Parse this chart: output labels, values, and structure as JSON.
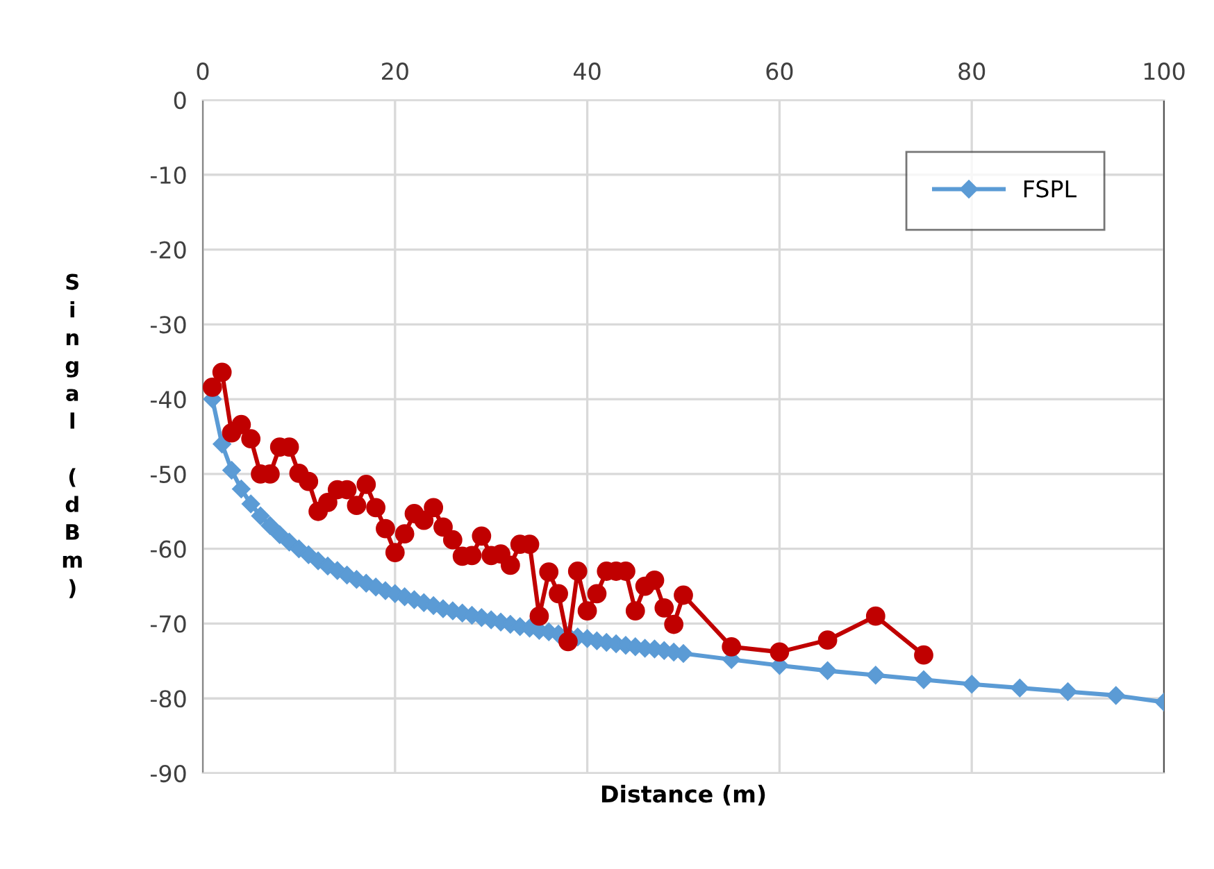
{
  "chart_data": {
    "type": "line",
    "xlabel": "Distance (m)",
    "ylabel": "Singal (dBm)",
    "xlim": [
      0,
      100
    ],
    "xticks": [
      0,
      20,
      40,
      60,
      80,
      100
    ],
    "ylim": [
      -90,
      0
    ],
    "yticks": [
      0,
      -10,
      -20,
      -30,
      -40,
      -50,
      -60,
      -70,
      -80,
      -90
    ],
    "grid": true,
    "legend": "top right",
    "series": [
      {
        "color": "#c00000",
        "marker": "circle",
        "x": [
          1,
          2,
          3,
          4,
          5,
          6,
          7,
          8,
          9,
          10,
          11,
          12,
          13,
          14,
          15,
          16,
          17,
          18,
          19,
          20,
          21,
          22,
          23,
          24,
          25,
          26,
          27,
          28,
          29,
          30,
          31,
          32,
          33,
          34,
          35,
          36,
          37,
          38,
          39,
          40,
          41,
          42,
          43,
          44,
          45,
          46,
          47,
          48,
          49,
          50,
          55,
          60,
          65,
          70,
          75
        ],
        "values": [
          -38.4,
          -36.4,
          -44.5,
          -43.4,
          -45.3,
          -50,
          -50,
          -46.4,
          -46.4,
          -49.9,
          -51,
          -55,
          -53.8,
          -52.1,
          -52.1,
          -54.2,
          -51.4,
          -54.5,
          -57.3,
          -60.5,
          -58,
          -55.3,
          -56.2,
          -54.5,
          -57.1,
          -58.8,
          -61,
          -60.9,
          -58.3,
          -60.9,
          -60.7,
          -62.2,
          -59.4,
          -59.4,
          -69,
          -63.1,
          -66,
          -72.4,
          -63,
          -68.3,
          -66,
          -63,
          -63,
          -63,
          -68.3,
          -65,
          -64.2,
          -67.9,
          -70.1,
          -66.2,
          -73.1,
          -73.8,
          -72.2,
          -69,
          -74.2
        ]
      },
      {
        "name": "FSPL",
        "color": "#5b9bd5",
        "marker": "diamond",
        "x": [
          1,
          2,
          3,
          4,
          5,
          6,
          7,
          8,
          9,
          10,
          11,
          12,
          13,
          14,
          15,
          16,
          17,
          18,
          19,
          20,
          21,
          22,
          23,
          24,
          25,
          26,
          27,
          28,
          29,
          30,
          31,
          32,
          33,
          34,
          35,
          36,
          37,
          38,
          39,
          40,
          41,
          42,
          43,
          44,
          45,
          46,
          47,
          48,
          49,
          50,
          55,
          60,
          65,
          70,
          75,
          80,
          85,
          90,
          95,
          100
        ],
        "values": [
          -40,
          -46,
          -49.5,
          -52,
          -54,
          -55.6,
          -56.9,
          -58.1,
          -59.1,
          -60,
          -60.8,
          -61.6,
          -62.3,
          -62.9,
          -63.5,
          -64.1,
          -64.6,
          -65.1,
          -65.6,
          -66,
          -66.4,
          -66.8,
          -67.2,
          -67.6,
          -68,
          -68.3,
          -68.6,
          -68.9,
          -69.2,
          -69.5,
          -69.8,
          -70.1,
          -70.4,
          -70.6,
          -70.9,
          -71.1,
          -71.4,
          -71.6,
          -71.8,
          -72,
          -72.3,
          -72.5,
          -72.7,
          -72.9,
          -73.1,
          -73.3,
          -73.4,
          -73.6,
          -73.8,
          -74,
          -74.8,
          -75.6,
          -76.3,
          -76.9,
          -77.5,
          -78.1,
          -78.6,
          -79.1,
          -79.6,
          -80.5
        ]
      }
    ]
  }
}
